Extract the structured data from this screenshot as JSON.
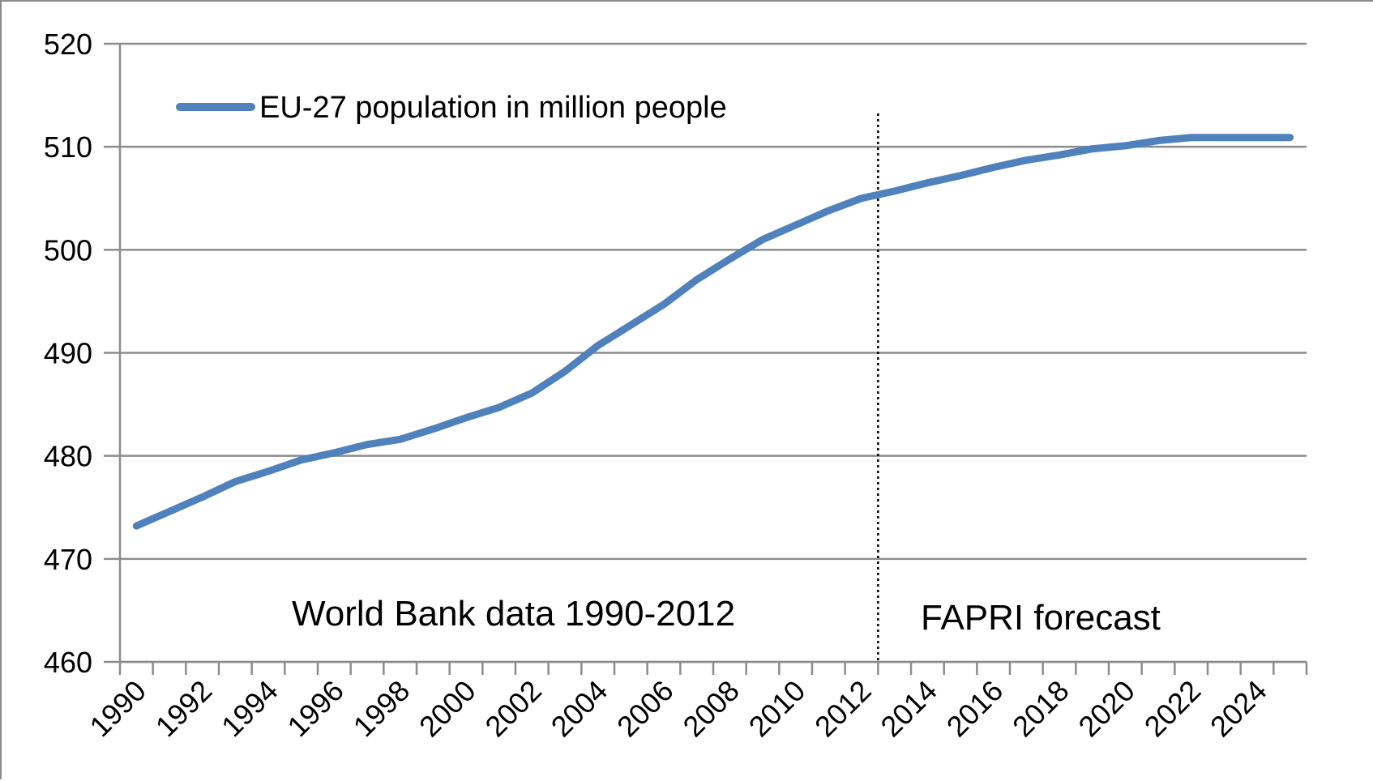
{
  "chart_data": {
    "type": "line",
    "title": "",
    "xlabel": "",
    "ylabel": "",
    "x": [
      1990,
      1991,
      1992,
      1993,
      1994,
      1995,
      1996,
      1997,
      1998,
      1999,
      2000,
      2001,
      2002,
      2003,
      2004,
      2005,
      2006,
      2007,
      2008,
      2009,
      2010,
      2011,
      2012,
      2013,
      2014,
      2015,
      2016,
      2017,
      2018,
      2019,
      2020,
      2021,
      2022,
      2023,
      2024,
      2025
    ],
    "series": [
      {
        "name": "EU-27 population in million people",
        "color": "#4f81bd",
        "values": [
          473.2,
          474.6,
          476.0,
          477.5,
          478.5,
          479.6,
          480.3,
          481.1,
          481.6,
          482.6,
          483.7,
          484.7,
          486.1,
          488.2,
          490.7,
          492.7,
          494.7,
          497.1,
          499.1,
          501.0,
          502.4,
          503.8,
          505.0,
          505.7,
          506.5,
          507.2,
          508.0,
          508.7,
          509.2,
          509.8,
          510.1,
          510.6,
          510.9,
          510.9,
          510.9,
          510.9
        ]
      }
    ],
    "ylim": [
      460,
      520
    ],
    "y_ticks": [
      460,
      470,
      480,
      490,
      500,
      510,
      520
    ],
    "x_tick_labels": [
      "1990",
      "1992",
      "1994",
      "1996",
      "1998",
      "2000",
      "2002",
      "2004",
      "2006",
      "2008",
      "2010",
      "2012",
      "2014",
      "2016",
      "2018",
      "2020",
      "2022",
      "2024"
    ],
    "grid": true,
    "legend": "top-left",
    "divider_x": 2012.5,
    "annotations": {
      "left_region": "World Bank data 1990-2012",
      "right_region": "FAPRI forecast"
    }
  }
}
